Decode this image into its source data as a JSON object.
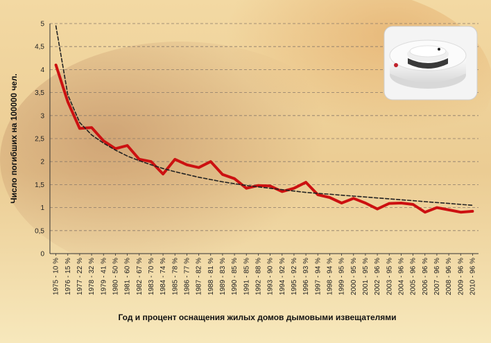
{
  "chart_data": {
    "type": "line",
    "xlabel": "Год и процент оснащения жилых домов дымовыми извещателями",
    "ylabel": "Число погибших на 100000 чел.",
    "ylim": [
      0,
      5
    ],
    "y_ticks": [
      "0",
      "0,5",
      "1",
      "1,5",
      "2",
      "2,5",
      "3",
      "3,5",
      "4",
      "4,5",
      "5"
    ],
    "grid": true,
    "categories": [
      "1975 - 10 %",
      "1976 - 15 %",
      "1977 - 22 %",
      "1978 - 32 %",
      "1979 - 41 %",
      "1980 - 50 %",
      "1981 - 60 %",
      "1982 - 67 %",
      "1983 - 70 %",
      "1984 - 74 %",
      "1985 - 78 %",
      "1986 - 77 %",
      "1987 - 82 %",
      "1988 - 81 %",
      "1989 - 83 %",
      "1990 - 85 %",
      "1991 - 85 %",
      "1992 - 88 %",
      "1993 - 90 %",
      "1994 - 92 %",
      "1995 - 92 %",
      "1996 - 93 %",
      "1997 - 94 %",
      "1998 - 94 %",
      "1999 - 95 %",
      "2000 - 95 %",
      "2001 - 95 %",
      "2002 - 96 %",
      "2003 - 95 %",
      "2004 - 96 %",
      "2005 - 96 %",
      "2006 - 96 %",
      "2007 - 96 %",
      "2008 - 96 %",
      "2009 - 96 %",
      "2010 - 96 %"
    ],
    "series": [
      {
        "style": "solid",
        "color": "#cc1111",
        "values": [
          4.1,
          3.3,
          2.72,
          2.74,
          2.45,
          2.28,
          2.35,
          2.05,
          2.0,
          1.73,
          2.05,
          1.93,
          1.87,
          2.0,
          1.72,
          1.63,
          1.42,
          1.48,
          1.47,
          1.35,
          1.42,
          1.55,
          1.28,
          1.22,
          1.1,
          1.2,
          1.1,
          0.97,
          1.09,
          1.1,
          1.07,
          0.9,
          1.0,
          0.95,
          0.9,
          0.92
        ]
      },
      {
        "style": "dashed",
        "color": "#222222",
        "values": [
          4.95,
          3.45,
          2.85,
          2.58,
          2.4,
          2.25,
          2.12,
          2.02,
          1.93,
          1.85,
          1.78,
          1.72,
          1.66,
          1.61,
          1.56,
          1.52,
          1.48,
          1.45,
          1.42,
          1.39,
          1.36,
          1.33,
          1.31,
          1.29,
          1.27,
          1.25,
          1.23,
          1.21,
          1.19,
          1.17,
          1.15,
          1.13,
          1.11,
          1.09,
          1.07,
          1.05
        ]
      }
    ]
  },
  "photo": {
    "icon": "smoke-detector-icon"
  },
  "colors": {
    "bg_light": "#f6e7b0",
    "bg_mid": "#e8bb6c",
    "bg_dark": "#b8825b"
  }
}
